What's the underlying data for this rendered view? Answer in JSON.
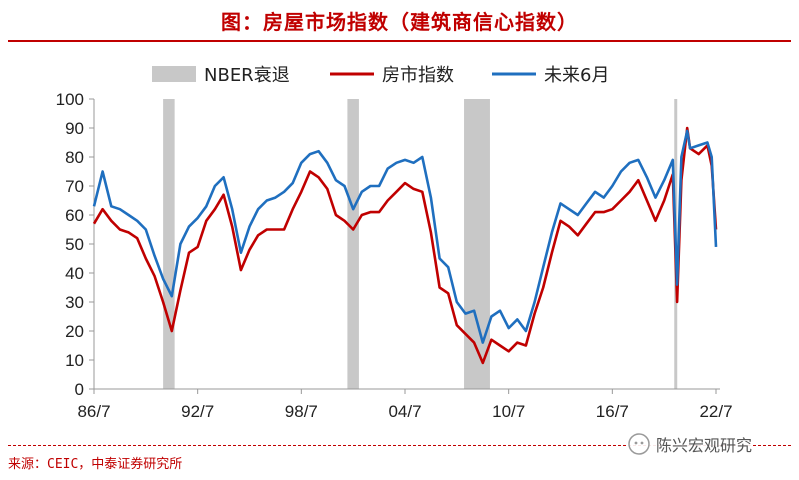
{
  "header": {
    "title": "图：房屋市场指数（建筑商信心指数）"
  },
  "footer": {
    "source": "来源：CEIC，中泰证券研究所",
    "watermark": "陈兴宏观研究"
  },
  "colors": {
    "recession": "#c8c8c8",
    "housing": "#c00000",
    "future": "#1f6fbf",
    "title": "#c00000"
  },
  "chart_data": {
    "type": "line",
    "legend": [
      "NBER衰退",
      "房市指数",
      "未来6月"
    ],
    "legend_position": "top",
    "ylim": [
      0,
      100
    ],
    "yticks": [
      0,
      10,
      20,
      30,
      40,
      50,
      60,
      70,
      80,
      90,
      100
    ],
    "xlim": [
      1986.5,
      2022.5
    ],
    "xticks": [
      {
        "label": "86/7",
        "value": 1986.5
      },
      {
        "label": "92/7",
        "value": 1992.5
      },
      {
        "label": "98/7",
        "value": 1998.5
      },
      {
        "label": "04/7",
        "value": 2004.5
      },
      {
        "label": "10/7",
        "value": 2010.5
      },
      {
        "label": "16/7",
        "value": 2016.5
      },
      {
        "label": "22/7",
        "value": 2022.5
      }
    ],
    "recessions": [
      {
        "start": "1990/7",
        "end": "1991/3"
      },
      {
        "start": "2001/3",
        "end": "2001/11"
      },
      {
        "start": "2007/12",
        "end": "2009/6"
      },
      {
        "start": "2020/2",
        "end": "2020/4"
      }
    ],
    "series": [
      {
        "name": "房市指数",
        "points": [
          [
            "1986/7",
            57
          ],
          [
            "1987/1",
            62
          ],
          [
            "1987/7",
            58
          ],
          [
            "1988/1",
            55
          ],
          [
            "1988/7",
            54
          ],
          [
            "1989/1",
            52
          ],
          [
            "1989/7",
            45
          ],
          [
            "1990/1",
            39
          ],
          [
            "1990/7",
            30
          ],
          [
            "1991/1",
            20
          ],
          [
            "1991/7",
            34
          ],
          [
            "1992/1",
            47
          ],
          [
            "1992/7",
            49
          ],
          [
            "1993/1",
            58
          ],
          [
            "1993/7",
            62
          ],
          [
            "1994/1",
            67
          ],
          [
            "1994/7",
            56
          ],
          [
            "1995/1",
            41
          ],
          [
            "1995/7",
            48
          ],
          [
            "1996/1",
            53
          ],
          [
            "1996/7",
            55
          ],
          [
            "1997/1",
            55
          ],
          [
            "1997/7",
            55
          ],
          [
            "1998/1",
            62
          ],
          [
            "1998/7",
            68
          ],
          [
            "1999/1",
            75
          ],
          [
            "1999/7",
            73
          ],
          [
            "2000/1",
            69
          ],
          [
            "2000/7",
            60
          ],
          [
            "2001/1",
            58
          ],
          [
            "2001/7",
            55
          ],
          [
            "2002/1",
            60
          ],
          [
            "2002/7",
            61
          ],
          [
            "2003/1",
            61
          ],
          [
            "2003/7",
            65
          ],
          [
            "2004/1",
            68
          ],
          [
            "2004/7",
            71
          ],
          [
            "2005/1",
            69
          ],
          [
            "2005/7",
            68
          ],
          [
            "2006/1",
            54
          ],
          [
            "2006/7",
            35
          ],
          [
            "2007/1",
            33
          ],
          [
            "2007/7",
            22
          ],
          [
            "2008/1",
            19
          ],
          [
            "2008/7",
            16
          ],
          [
            "2009/1",
            9
          ],
          [
            "2009/7",
            17
          ],
          [
            "2010/1",
            15
          ],
          [
            "2010/7",
            13
          ],
          [
            "2011/1",
            16
          ],
          [
            "2011/7",
            15
          ],
          [
            "2012/1",
            26
          ],
          [
            "2012/7",
            35
          ],
          [
            "2013/1",
            47
          ],
          [
            "2013/7",
            58
          ],
          [
            "2014/1",
            56
          ],
          [
            "2014/7",
            53
          ],
          [
            "2015/1",
            57
          ],
          [
            "2015/7",
            61
          ],
          [
            "2016/1",
            61
          ],
          [
            "2016/7",
            62
          ],
          [
            "2017/1",
            65
          ],
          [
            "2017/7",
            68
          ],
          [
            "2018/1",
            72
          ],
          [
            "2018/7",
            65
          ],
          [
            "2019/1",
            58
          ],
          [
            "2019/7",
            65
          ],
          [
            "2020/1",
            74
          ],
          [
            "2020/4",
            30
          ],
          [
            "2020/7",
            72
          ],
          [
            "2020/11",
            90
          ],
          [
            "2021/1",
            83
          ],
          [
            "2021/7",
            81
          ],
          [
            "2022/1",
            84
          ],
          [
            "2022/4",
            77
          ],
          [
            "2022/7",
            55
          ]
        ]
      },
      {
        "name": "未来6月",
        "points": [
          [
            "1986/7",
            63
          ],
          [
            "1987/1",
            75
          ],
          [
            "1987/7",
            63
          ],
          [
            "1988/1",
            62
          ],
          [
            "1988/7",
            60
          ],
          [
            "1989/1",
            58
          ],
          [
            "1989/7",
            55
          ],
          [
            "1990/1",
            46
          ],
          [
            "1990/7",
            38
          ],
          [
            "1991/1",
            32
          ],
          [
            "1991/7",
            50
          ],
          [
            "1992/1",
            56
          ],
          [
            "1992/7",
            59
          ],
          [
            "1993/1",
            63
          ],
          [
            "1993/7",
            70
          ],
          [
            "1994/1",
            73
          ],
          [
            "1994/7",
            62
          ],
          [
            "1995/1",
            47
          ],
          [
            "1995/7",
            56
          ],
          [
            "1996/1",
            62
          ],
          [
            "1996/7",
            65
          ],
          [
            "1997/1",
            66
          ],
          [
            "1997/7",
            68
          ],
          [
            "1998/1",
            71
          ],
          [
            "1998/7",
            78
          ],
          [
            "1999/1",
            81
          ],
          [
            "1999/7",
            82
          ],
          [
            "2000/1",
            78
          ],
          [
            "2000/7",
            72
          ],
          [
            "2001/1",
            70
          ],
          [
            "2001/7",
            62
          ],
          [
            "2002/1",
            68
          ],
          [
            "2002/7",
            70
          ],
          [
            "2003/1",
            70
          ],
          [
            "2003/7",
            76
          ],
          [
            "2004/1",
            78
          ],
          [
            "2004/7",
            79
          ],
          [
            "2005/1",
            78
          ],
          [
            "2005/7",
            80
          ],
          [
            "2006/1",
            66
          ],
          [
            "2006/7",
            45
          ],
          [
            "2007/1",
            42
          ],
          [
            "2007/7",
            30
          ],
          [
            "2008/1",
            26
          ],
          [
            "2008/7",
            27
          ],
          [
            "2009/1",
            16
          ],
          [
            "2009/7",
            25
          ],
          [
            "2010/1",
            27
          ],
          [
            "2010/7",
            21
          ],
          [
            "2011/1",
            24
          ],
          [
            "2011/7",
            20
          ],
          [
            "2012/1",
            30
          ],
          [
            "2012/7",
            42
          ],
          [
            "2013/1",
            54
          ],
          [
            "2013/7",
            64
          ],
          [
            "2014/1",
            62
          ],
          [
            "2014/7",
            60
          ],
          [
            "2015/1",
            64
          ],
          [
            "2015/7",
            68
          ],
          [
            "2016/1",
            66
          ],
          [
            "2016/7",
            70
          ],
          [
            "2017/1",
            75
          ],
          [
            "2017/7",
            78
          ],
          [
            "2018/1",
            79
          ],
          [
            "2018/7",
            73
          ],
          [
            "2019/1",
            66
          ],
          [
            "2019/7",
            72
          ],
          [
            "2020/1",
            79
          ],
          [
            "2020/4",
            36
          ],
          [
            "2020/7",
            80
          ],
          [
            "2020/11",
            89
          ],
          [
            "2021/1",
            83
          ],
          [
            "2021/7",
            84
          ],
          [
            "2022/1",
            85
          ],
          [
            "2022/4",
            80
          ],
          [
            "2022/7",
            49
          ]
        ]
      }
    ]
  }
}
